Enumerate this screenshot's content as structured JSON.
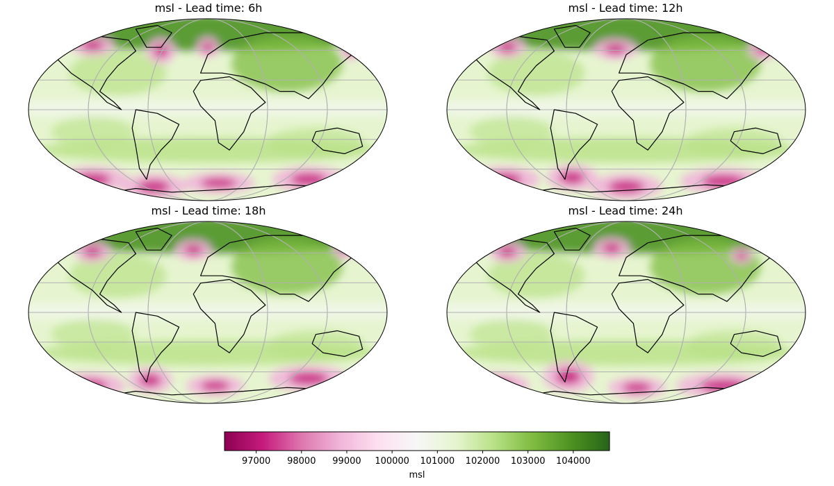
{
  "panels": [
    {
      "title": "msl - Lead time: 6h"
    },
    {
      "title": "msl - Lead time: 12h"
    },
    {
      "title": "msl - Lead time: 18h"
    },
    {
      "title": "msl - Lead time: 24h"
    }
  ],
  "colorbar": {
    "label": "msl",
    "colormap": "PiYG",
    "range": [
      96300,
      104800
    ],
    "ticks": [
      97000,
      98000,
      99000,
      100000,
      101000,
      102000,
      103000,
      104000
    ],
    "colors": [
      "#8e0152",
      "#c51b7d",
      "#de77ae",
      "#f1b6da",
      "#fde0ef",
      "#f7f7f7",
      "#e6f5d0",
      "#b8e186",
      "#7fbc41",
      "#4d9221",
      "#276419"
    ]
  },
  "projection": "Robinson",
  "graticule": true
}
